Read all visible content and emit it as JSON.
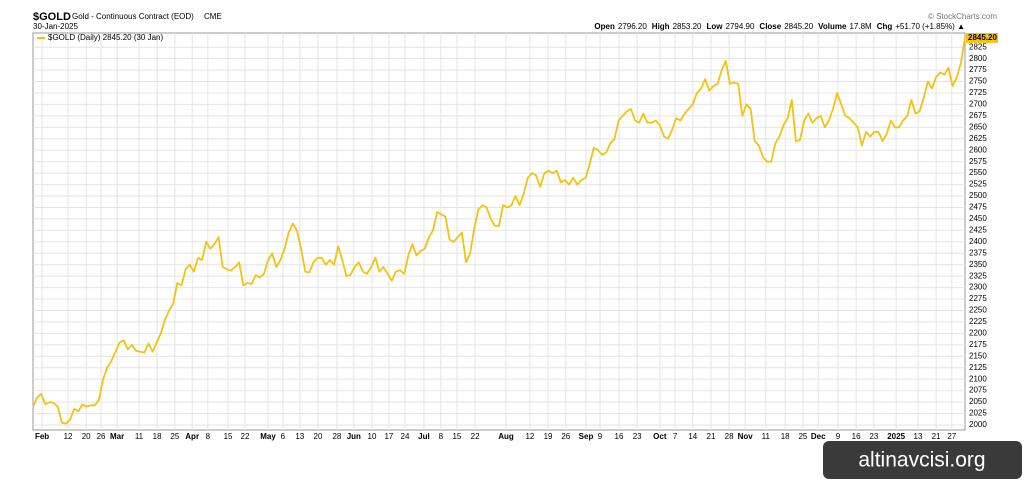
{
  "chart_data": {
    "type": "line",
    "title": "$GOLD",
    "subtitle": "Gold - Continuous Contract (EOD)",
    "exchange": "CME",
    "date": "30-Jan-2025",
    "source": "© StockCharts.com",
    "quote": [
      {
        "label": "Open",
        "value": "2796.20"
      },
      {
        "label": "High",
        "value": "2853.20"
      },
      {
        "label": "Low",
        "value": "2794.90"
      },
      {
        "label": "Close",
        "value": "2845.20"
      },
      {
        "label": "Volume",
        "value": "17.8M"
      },
      {
        "label": "Chg",
        "value": "+51.70 (+1.85%) ▲"
      }
    ],
    "last_value_label": "2845.20",
    "watermark": "altinavcisi.org",
    "series": [
      {
        "name": "$GOLD (Daily) 2845.20 (30 Jan)",
        "color": "#f2c311",
        "values": [
          2040,
          2060,
          2068,
          2045,
          2050,
          2048,
          2040,
          2005,
          2003,
          2012,
          2035,
          2030,
          2045,
          2040,
          2043,
          2043,
          2055,
          2100,
          2125,
          2140,
          2160,
          2180,
          2185,
          2165,
          2175,
          2162,
          2160,
          2158,
          2178,
          2160,
          2180,
          2200,
          2230,
          2250,
          2265,
          2310,
          2305,
          2340,
          2350,
          2335,
          2365,
          2360,
          2400,
          2385,
          2395,
          2410,
          2345,
          2340,
          2337,
          2345,
          2355,
          2305,
          2310,
          2308,
          2327,
          2322,
          2330,
          2360,
          2375,
          2345,
          2360,
          2385,
          2420,
          2440,
          2425,
          2385,
          2335,
          2333,
          2355,
          2365,
          2365,
          2350,
          2360,
          2350,
          2390,
          2360,
          2325,
          2328,
          2345,
          2355,
          2335,
          2330,
          2345,
          2365,
          2335,
          2345,
          2330,
          2315,
          2335,
          2338,
          2330,
          2370,
          2395,
          2370,
          2380,
          2385,
          2410,
          2425,
          2465,
          2460,
          2455,
          2405,
          2400,
          2410,
          2420,
          2355,
          2375,
          2430,
          2470,
          2480,
          2475,
          2450,
          2435,
          2435,
          2480,
          2475,
          2480,
          2500,
          2480,
          2505,
          2540,
          2550,
          2545,
          2520,
          2550,
          2555,
          2550,
          2555,
          2530,
          2535,
          2525,
          2540,
          2525,
          2535,
          2540,
          2570,
          2605,
          2600,
          2590,
          2595,
          2615,
          2625,
          2665,
          2675,
          2685,
          2690,
          2665,
          2660,
          2680,
          2660,
          2660,
          2665,
          2655,
          2630,
          2625,
          2645,
          2670,
          2665,
          2680,
          2690,
          2700,
          2725,
          2735,
          2755,
          2730,
          2740,
          2745,
          2775,
          2795,
          2745,
          2748,
          2745,
          2675,
          2700,
          2690,
          2620,
          2610,
          2585,
          2575,
          2575,
          2615,
          2630,
          2655,
          2670,
          2710,
          2620,
          2622,
          2665,
          2680,
          2660,
          2670,
          2675,
          2650,
          2665,
          2690,
          2725,
          2700,
          2675,
          2670,
          2660,
          2650,
          2610,
          2640,
          2630,
          2640,
          2640,
          2620,
          2635,
          2665,
          2650,
          2650,
          2665,
          2675,
          2710,
          2680,
          2685,
          2715,
          2750,
          2735,
          2760,
          2770,
          2765,
          2780,
          2740,
          2760,
          2790,
          2845.2
        ]
      }
    ],
    "xlim": [
      0,
      226
    ],
    "xticks": [
      {
        "value": 2.2,
        "label": "Feb"
      },
      {
        "value": 8.5,
        "label": "12"
      },
      {
        "value": 12.9,
        "label": "20"
      },
      {
        "value": 16.5,
        "label": "26"
      },
      {
        "value": 20.4,
        "label": "Mar"
      },
      {
        "value": 25.7,
        "label": "11"
      },
      {
        "value": 30.1,
        "label": "18"
      },
      {
        "value": 34.4,
        "label": "25"
      },
      {
        "value": 38.6,
        "label": "Apr"
      },
      {
        "value": 42.4,
        "label": "8"
      },
      {
        "value": 47.3,
        "label": "15"
      },
      {
        "value": 51.4,
        "label": "22"
      },
      {
        "value": 57.0,
        "label": "May"
      },
      {
        "value": 60.6,
        "label": "6"
      },
      {
        "value": 64.7,
        "label": "13"
      },
      {
        "value": 69.1,
        "label": "20"
      },
      {
        "value": 73.7,
        "label": "28"
      },
      {
        "value": 77.8,
        "label": "Jun"
      },
      {
        "value": 82.2,
        "label": "10"
      },
      {
        "value": 86.3,
        "label": "17"
      },
      {
        "value": 90.2,
        "label": "24"
      },
      {
        "value": 94.8,
        "label": "Jul"
      },
      {
        "value": 98.9,
        "label": "8"
      },
      {
        "value": 102.8,
        "label": "15"
      },
      {
        "value": 107.2,
        "label": "22"
      },
      {
        "value": 114.7,
        "label": "Aug"
      },
      {
        "value": 120.5,
        "label": "12"
      },
      {
        "value": 124.9,
        "label": "19"
      },
      {
        "value": 129.2,
        "label": "26"
      },
      {
        "value": 134.1,
        "label": "Sep"
      },
      {
        "value": 137.5,
        "label": "9"
      },
      {
        "value": 142.1,
        "label": "16"
      },
      {
        "value": 146.5,
        "label": "23"
      },
      {
        "value": 152.0,
        "label": "Oct"
      },
      {
        "value": 155.7,
        "label": "7"
      },
      {
        "value": 160.0,
        "label": "14"
      },
      {
        "value": 164.4,
        "label": "21"
      },
      {
        "value": 168.8,
        "label": "28"
      },
      {
        "value": 172.7,
        "label": "Nov"
      },
      {
        "value": 177.7,
        "label": "11"
      },
      {
        "value": 182.4,
        "label": "18"
      },
      {
        "value": 186.7,
        "label": "25"
      },
      {
        "value": 190.4,
        "label": "Dec"
      },
      {
        "value": 195.2,
        "label": "9"
      },
      {
        "value": 199.6,
        "label": "16"
      },
      {
        "value": 203.9,
        "label": "23"
      },
      {
        "value": 209.3,
        "label": "2025"
      },
      {
        "value": 214.6,
        "label": "13"
      },
      {
        "value": 219.0,
        "label": "21"
      },
      {
        "value": 222.8,
        "label": "27"
      }
    ],
    "ylim": [
      1989,
      2856
    ],
    "yticks": [
      2000,
      2025,
      2050,
      2075,
      2100,
      2125,
      2150,
      2175,
      2200,
      2225,
      2250,
      2275,
      2300,
      2325,
      2350,
      2375,
      2400,
      2425,
      2450,
      2475,
      2500,
      2525,
      2550,
      2575,
      2600,
      2625,
      2650,
      2675,
      2700,
      2725,
      2750,
      2775,
      2800,
      2825
    ],
    "grid": true
  }
}
